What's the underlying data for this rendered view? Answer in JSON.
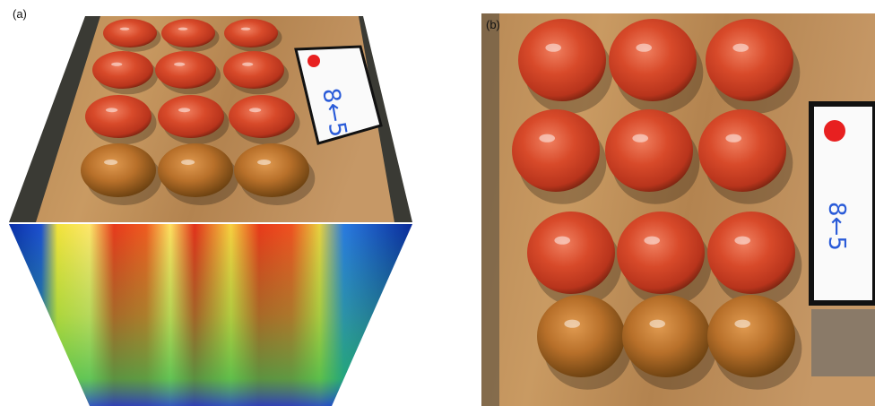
{
  "panels": [
    {
      "label": "(a)",
      "card_text": "8←5"
    },
    {
      "label": "(b)",
      "card_text": "8←5"
    }
  ]
}
